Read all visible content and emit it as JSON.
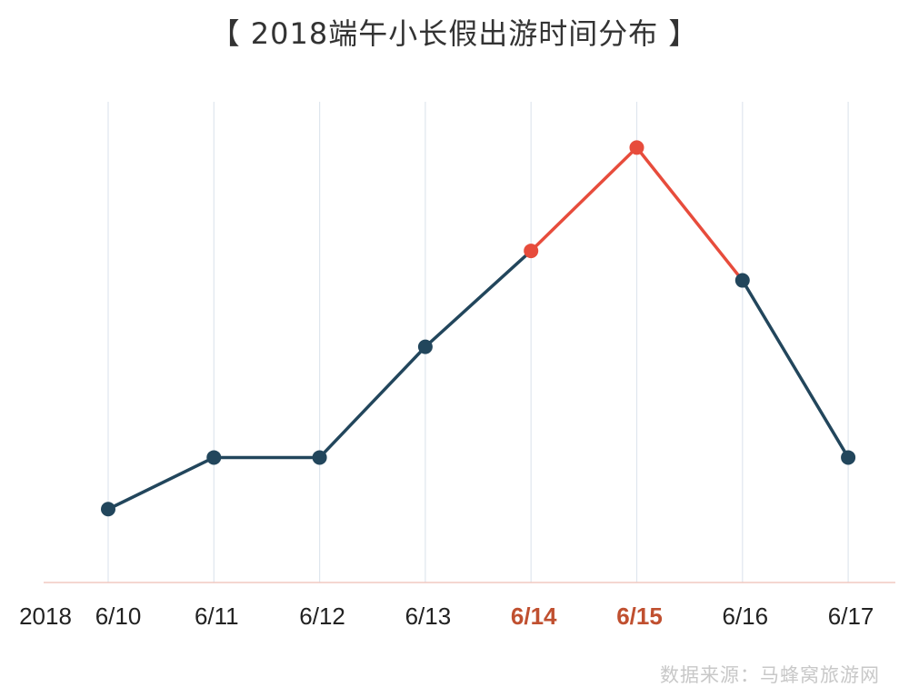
{
  "title": "【 2018端午小长假出游时间分布 】",
  "source": "数据来源：马蜂窝旅游网",
  "chart_data": {
    "type": "line",
    "year_label": "2018",
    "categories": [
      "6/10",
      "6/11",
      "6/12",
      "6/13",
      "6/14",
      "6/15",
      "6/16",
      "6/17"
    ],
    "values": [
      31,
      38,
      38,
      53,
      66,
      80,
      62,
      38
    ],
    "highlighted": [
      "6/14",
      "6/15"
    ],
    "ylim": [
      0,
      100
    ],
    "grid": "vertical",
    "yaxis_labels": false,
    "colors": {
      "line": "#22465c",
      "highlight": "#e74c3c",
      "highlight_label": "#c05030",
      "grid": "#dfe6ee",
      "axis": "#f0c8c0"
    }
  }
}
